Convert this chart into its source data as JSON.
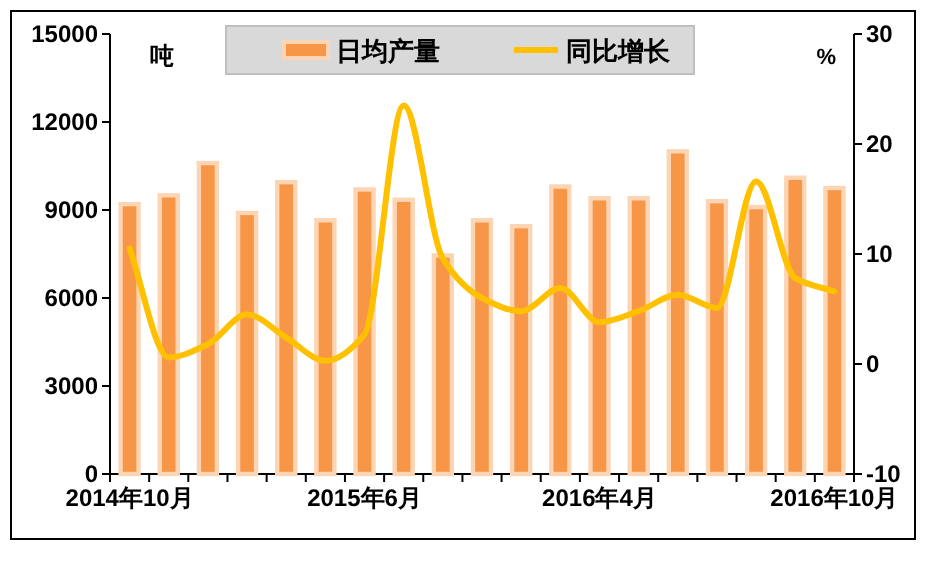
{
  "chart_data": {
    "type": "bar",
    "categories": [
      "2014年10月",
      null,
      null,
      null,
      null,
      null,
      "2015年6月",
      null,
      null,
      null,
      null,
      null,
      "2016年4月",
      null,
      null,
      null,
      null,
      null,
      "2016年10月"
    ],
    "series": [
      {
        "name": "日均产量",
        "color": "#f79646",
        "values": [
          9200,
          9500,
          10600,
          8900,
          9950,
          8650,
          9700,
          9350,
          7450,
          8650,
          8450,
          9800,
          9400,
          9400,
          11000,
          9300,
          9100,
          10100,
          9750
        ]
      },
      {
        "name": "同比增长",
        "type": "line",
        "axis": "y2",
        "color": "#ffc000",
        "values": [
          10.5,
          0.6,
          1.8,
          4.5,
          2.4,
          0.3,
          2.7,
          23.5,
          9.6,
          6,
          4.8,
          6.9,
          3.8,
          4.8,
          6.3,
          5.1,
          16.6,
          7.8,
          6.6
        ]
      }
    ],
    "ylabel": "吨",
    "y2label": "%",
    "ylim": [
      0,
      15000
    ],
    "yticks": [
      0,
      3000,
      6000,
      9000,
      12000,
      15000
    ],
    "y2lim": [
      -10,
      30
    ],
    "y2ticks": [
      -10,
      0,
      10,
      20,
      30
    ],
    "legend": "top",
    "grid": false
  }
}
